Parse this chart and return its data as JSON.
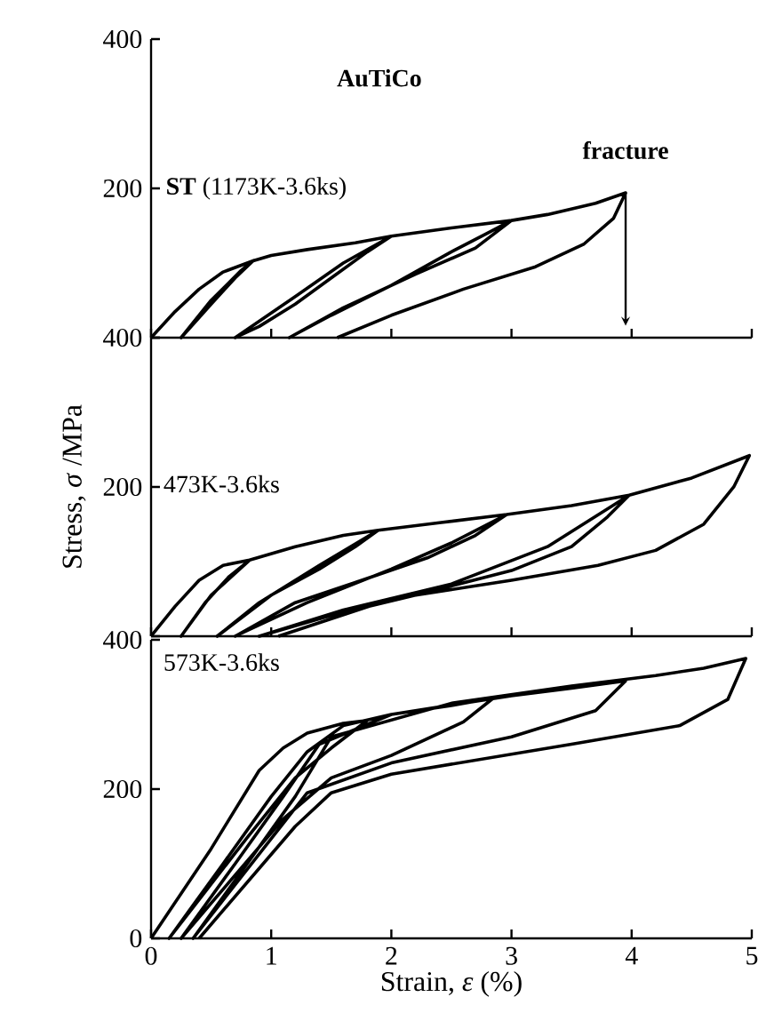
{
  "chart_data": [
    {
      "type": "line",
      "xlim": [
        0,
        5
      ],
      "xticks": [
        0,
        1,
        2,
        3,
        4,
        5
      ],
      "ylim": [
        0,
        400
      ],
      "yticks": [
        {
          "value": 0,
          "label": null
        },
        200,
        400
      ],
      "tick_labels": "y",
      "annotations": [
        "AuTiCo",
        "**ST** (1173K-3.6ks)",
        {
          "text": "fracture",
          "x": 3.95,
          "y": 194
        }
      ],
      "series": [
        {
          "color": "#000000",
          "x": [
            0,
            0.2,
            0.4,
            0.6,
            0.85,
            0.7,
            0.5,
            0.25,
            0.5,
            0.75,
            0.85,
            1.0,
            1.3,
            1.7,
            2.0,
            1.8,
            1.5,
            1.2,
            0.9,
            0.7,
            1.2,
            1.6,
            2.0,
            2.5,
            3.0,
            2.8,
            2.5,
            2.0,
            1.5,
            1.15,
            1.6,
            2.2,
            2.7,
            3.0,
            3.3,
            3.7,
            3.95,
            3.85,
            3.6,
            3.2,
            2.6,
            2.0,
            1.55
          ],
          "values": [
            0,
            35,
            65,
            88,
            103,
            80,
            45,
            0,
            50,
            90,
            103,
            110,
            118,
            127,
            136,
            115,
            80,
            45,
            15,
            0,
            55,
            100,
            136,
            147,
            157,
            140,
            115,
            70,
            30,
            0,
            40,
            85,
            120,
            157,
            165,
            180,
            194,
            160,
            125,
            95,
            65,
            30,
            0
          ]
        }
      ]
    },
    {
      "type": "line",
      "xlim": [
        0,
        5
      ],
      "xticks": [
        0,
        1,
        2,
        3,
        4,
        5
      ],
      "ylim": [
        0,
        400
      ],
      "yticks": [
        {
          "value": 0,
          "label": null
        },
        200,
        400
      ],
      "tick_labels": "y",
      "ylabel": "Stress, *σ* /MPa",
      "annotations": [
        "473K-3.6ks"
      ],
      "series": [
        {
          "color": "#000000",
          "x": [
            0,
            0.2,
            0.4,
            0.6,
            0.82,
            0.65,
            0.45,
            0.25,
            0.5,
            0.82,
            1.2,
            1.6,
            1.89,
            1.7,
            1.4,
            1.0,
            0.55,
            0.9,
            1.4,
            1.89,
            2.4,
            2.96,
            2.7,
            2.3,
            1.7,
            1.2,
            0.7,
            1.3,
            2.0,
            2.5,
            2.96,
            3.5,
            3.98,
            3.8,
            3.5,
            3.0,
            2.2,
            1.5,
            0.9,
            1.6,
            2.5,
            3.3,
            3.98,
            4.5,
            4.98,
            4.85,
            4.6,
            4.2,
            3.72,
            3.0,
            2.0,
            1.06
          ],
          "values": [
            0,
            40,
            75,
            95,
            102,
            80,
            45,
            0,
            55,
            102,
            120,
            135,
            142,
            120,
            90,
            55,
            0,
            45,
            95,
            142,
            152,
            163,
            135,
            105,
            72,
            45,
            0,
            45,
            90,
            125,
            163,
            175,
            189,
            160,
            120,
            88,
            55,
            28,
            0,
            35,
            70,
            120,
            189,
            212,
            242,
            200,
            150,
            115,
            95,
            75,
            50,
            0
          ]
        }
      ]
    },
    {
      "type": "line",
      "xlim": [
        0,
        5
      ],
      "xticks": [
        0,
        1,
        2,
        3,
        4,
        5
      ],
      "ylim": [
        0,
        400
      ],
      "yticks": [
        0,
        200,
        400
      ],
      "xlabel": "Strain, *ε* (%)",
      "annotations": [
        "573K-3.6ks"
      ],
      "series": [
        {
          "color": "#000000",
          "x": [
            0,
            0.5,
            0.9,
            1.1,
            1.3,
            1.6,
            1.8,
            1.5,
            1.2,
            0.8,
            0.15,
            0.6,
            1.0,
            1.3,
            1.6,
            2.0,
            2.5,
            2.85,
            2.6,
            2.0,
            1.5,
            1.1,
            0.25,
            0.7,
            1.1,
            1.4,
            2.0,
            3.0,
            3.5,
            3.95,
            3.7,
            3.0,
            2.0,
            1.3,
            0.35,
            0.8,
            1.2,
            1.5,
            2.5,
            3.5,
            4.2,
            4.6,
            4.95,
            4.8,
            4.4,
            3.5,
            2.0,
            1.5,
            1.2,
            0.4
          ],
          "values": [
            0,
            120,
            225,
            255,
            275,
            288,
            292,
            255,
            215,
            135,
            0,
            100,
            190,
            250,
            285,
            300,
            312,
            322,
            290,
            245,
            215,
            160,
            0,
            100,
            190,
            260,
            300,
            325,
            335,
            345,
            305,
            270,
            235,
            195,
            0,
            100,
            190,
            270,
            315,
            338,
            352,
            362,
            375,
            320,
            285,
            260,
            220,
            195,
            150,
            0
          ]
        }
      ]
    }
  ]
}
